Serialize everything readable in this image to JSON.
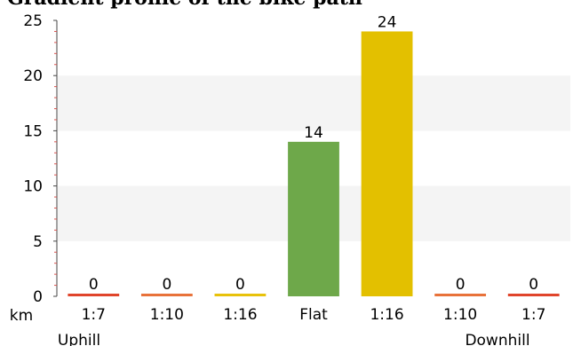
{
  "page": {
    "title_fragment": "Gradient profile of the bike path"
  },
  "chart_data": {
    "type": "bar",
    "title": "",
    "xlabel": "",
    "ylabel": "",
    "unit": "km",
    "ylim": [
      0,
      25
    ],
    "yticks": [
      0,
      5,
      10,
      15,
      20,
      25
    ],
    "categories": [
      "1:7",
      "1:10",
      "1:16",
      "Flat",
      "1:16",
      "1:10",
      "1:7"
    ],
    "values": [
      0,
      0,
      0,
      14,
      24,
      0,
      0
    ],
    "colors": [
      "#e0452b",
      "#e8723a",
      "#e8c20a",
      "#6ea84a",
      "#e3c000",
      "#e8723a",
      "#e0452b"
    ],
    "group_labels": {
      "left": "Uphill",
      "right": "Downhill"
    },
    "alternating_bands": true,
    "band_color": "#f4f4f4",
    "grid": false,
    "legend": "none"
  }
}
